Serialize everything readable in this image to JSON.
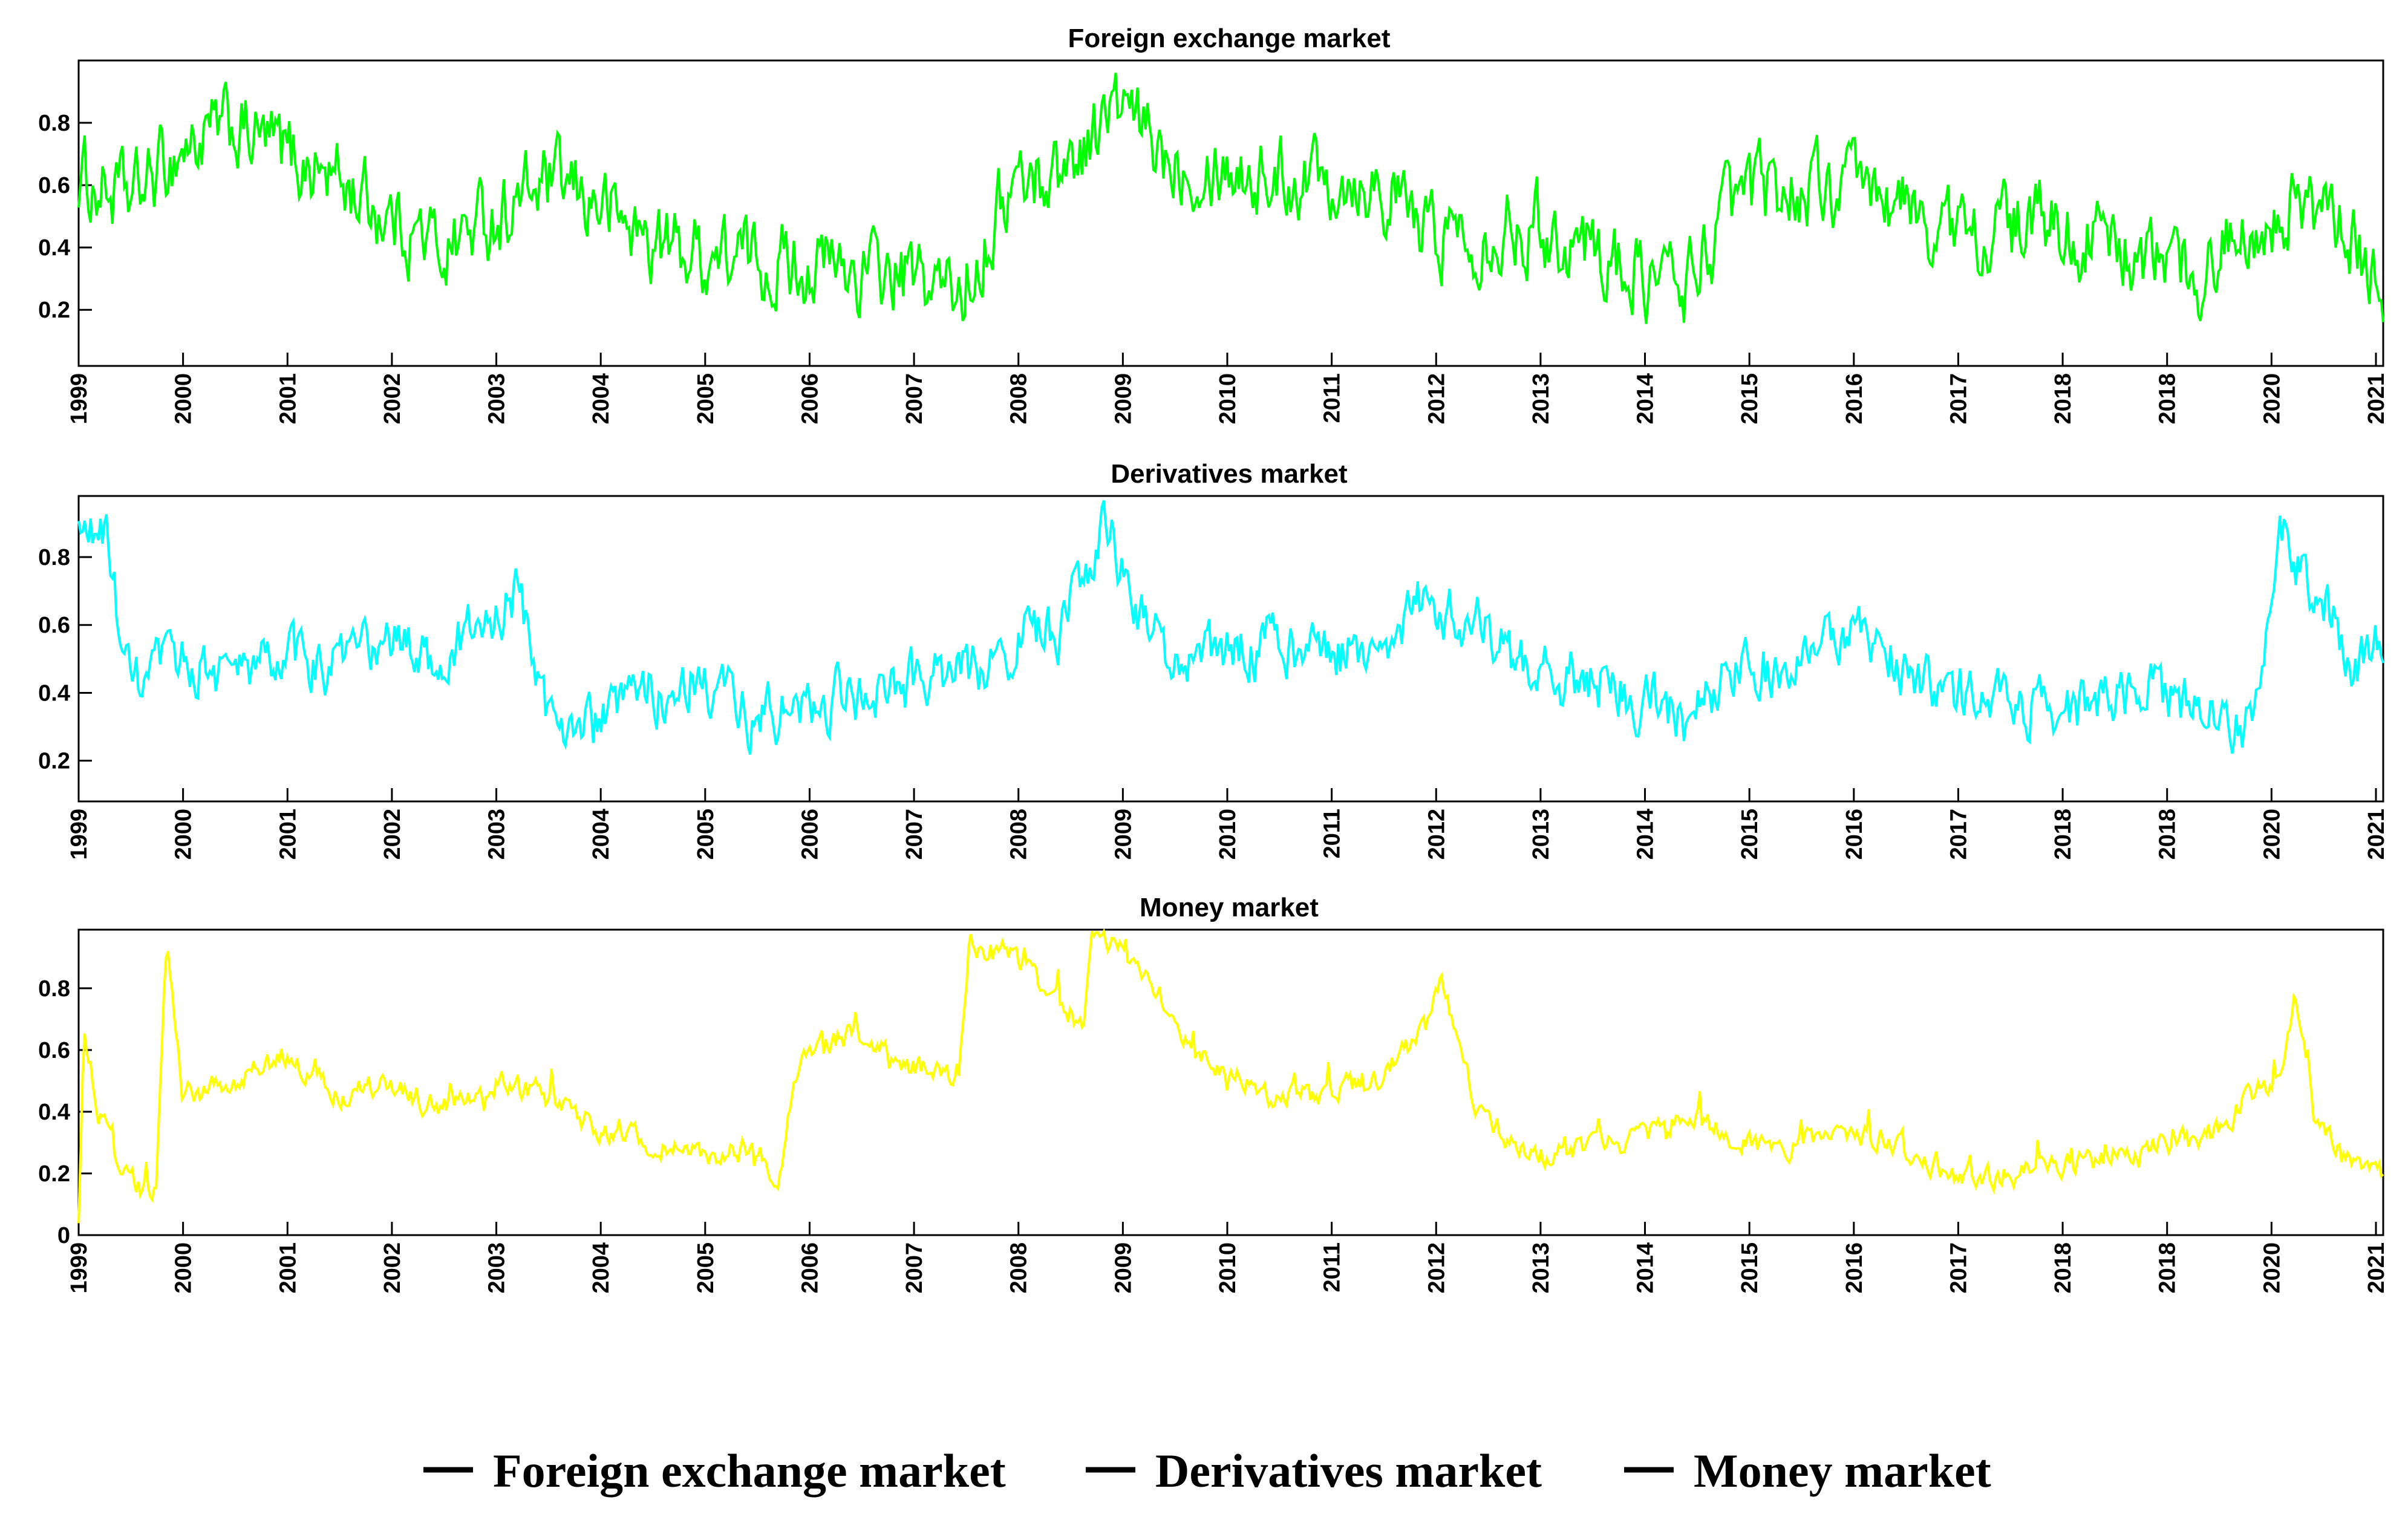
{
  "figure": {
    "legend": {
      "placement": "bottom-center",
      "entries": [
        "Foreign exchange market",
        "Derivatives market",
        "Money market"
      ]
    }
  },
  "chart_data": [
    {
      "type": "line",
      "title": "Foreign exchange market",
      "xlabel": "",
      "ylabel": "",
      "color": "#00ff00",
      "xlim": [
        1999.0,
        2021.25
      ],
      "ylim": [
        0.02,
        1.0
      ],
      "yticks": [
        0.2,
        0.4,
        0.6,
        0.8
      ],
      "ytick_labels": [
        "0.2",
        "0.4",
        "0.6",
        "0.8"
      ],
      "xtick_labels": [
        "1999",
        "2000",
        "2001",
        "2002",
        "2003",
        "2004",
        "2005",
        "2006",
        "2007",
        "2008",
        "2009",
        "2010",
        "2011",
        "2012",
        "2013",
        "2014",
        "2015",
        "2016",
        "2017",
        "2018",
        "2018",
        "2020",
        "2021"
      ],
      "grid": false,
      "series": [
        {
          "x": [
            1999.0,
            1999.5,
            2000.0,
            2000.5,
            2001.0,
            2001.5,
            2002.0,
            2002.5,
            2003.0,
            2003.5,
            2004.0,
            2004.5,
            2005.0,
            2005.5,
            2006.0,
            2006.5,
            2007.0,
            2007.5,
            2008.0,
            2008.5,
            2009.0,
            2009.5,
            2010.0,
            2010.5,
            2011.0,
            2011.5,
            2012.0,
            2012.5,
            2013.0,
            2013.5,
            2014.0,
            2014.5,
            2015.0,
            2015.5,
            2016.0,
            2016.5,
            2017.0,
            2017.5,
            2018.0,
            2018.5,
            2019.0,
            2019.5,
            2020.0,
            2020.5,
            2021.0,
            2021.25
          ],
          "y": [
            0.62,
            0.55,
            0.72,
            0.78,
            0.7,
            0.62,
            0.5,
            0.4,
            0.5,
            0.6,
            0.55,
            0.42,
            0.38,
            0.36,
            0.35,
            0.32,
            0.3,
            0.25,
            0.6,
            0.65,
            0.85,
            0.7,
            0.68,
            0.62,
            0.65,
            0.62,
            0.45,
            0.45,
            0.48,
            0.42,
            0.32,
            0.28,
            0.55,
            0.6,
            0.58,
            0.55,
            0.45,
            0.45,
            0.48,
            0.42,
            0.35,
            0.32,
            0.5,
            0.55,
            0.38,
            0.3
          ]
        }
      ]
    },
    {
      "type": "line",
      "title": "Derivatives market",
      "xlabel": "",
      "ylabel": "",
      "color": "#00ffff",
      "xlim": [
        1999.0,
        2021.25
      ],
      "ylim": [
        0.08,
        0.98
      ],
      "yticks": [
        0.2,
        0.4,
        0.6,
        0.8
      ],
      "ytick_labels": [
        "0.2",
        "0.4",
        "0.6",
        "0.8"
      ],
      "xtick_labels": [
        "1999",
        "2000",
        "2001",
        "2002",
        "2003",
        "2004",
        "2005",
        "2006",
        "2007",
        "2008",
        "2009",
        "2010",
        "2011",
        "2012",
        "2013",
        "2014",
        "2015",
        "2016",
        "2017",
        "2018",
        "2018",
        "2020",
        "2021"
      ],
      "grid": false,
      "series": [
        {
          "x": [
            1999.0,
            1999.25,
            1999.5,
            2000.0,
            2000.5,
            2001.0,
            2001.5,
            2002.0,
            2002.5,
            2003.0,
            2003.25,
            2003.5,
            2004.0,
            2004.5,
            2005.0,
            2005.5,
            2006.0,
            2006.5,
            2007.0,
            2007.5,
            2008.0,
            2008.5,
            2008.9,
            2009.25,
            2009.5,
            2010.0,
            2010.5,
            2011.0,
            2011.5,
            2012.0,
            2012.5,
            2013.0,
            2013.5,
            2014.0,
            2014.5,
            2015.0,
            2015.5,
            2016.0,
            2016.5,
            2017.0,
            2017.5,
            2018.0,
            2018.5,
            2019.0,
            2019.5,
            2020.0,
            2020.25,
            2020.5,
            2021.0,
            2021.25
          ],
          "y": [
            0.85,
            0.88,
            0.4,
            0.5,
            0.45,
            0.5,
            0.48,
            0.55,
            0.5,
            0.62,
            0.7,
            0.35,
            0.3,
            0.4,
            0.45,
            0.32,
            0.35,
            0.4,
            0.42,
            0.45,
            0.55,
            0.58,
            0.9,
            0.65,
            0.5,
            0.5,
            0.55,
            0.5,
            0.55,
            0.68,
            0.6,
            0.45,
            0.45,
            0.4,
            0.32,
            0.45,
            0.5,
            0.6,
            0.5,
            0.4,
            0.4,
            0.35,
            0.35,
            0.4,
            0.35,
            0.3,
            0.9,
            0.75,
            0.48,
            0.55
          ]
        }
      ]
    },
    {
      "type": "line",
      "title": "Money market",
      "xlabel": "",
      "ylabel": "",
      "color": "#ffff00",
      "xlim": [
        1999.0,
        2021.25
      ],
      "ylim": [
        0.0,
        0.99
      ],
      "yticks": [
        0,
        0.2,
        0.4,
        0.6,
        0.8
      ],
      "ytick_labels": [
        "0",
        "0.2",
        "0.4",
        "0.6",
        "0.8"
      ],
      "xtick_labels": [
        "1999",
        "2000",
        "2001",
        "2002",
        "2003",
        "2004",
        "2005",
        "2006",
        "2007",
        "2008",
        "2009",
        "2010",
        "2011",
        "2012",
        "2013",
        "2014",
        "2015",
        "2016",
        "2017",
        "2018",
        "2018",
        "2020",
        "2021"
      ],
      "grid": false,
      "series": [
        {
          "x": [
            1999.0,
            1999.05,
            1999.2,
            1999.4,
            1999.6,
            1999.75,
            1999.85,
            2000.0,
            2000.5,
            2001.0,
            2001.5,
            2002.0,
            2002.5,
            2003.0,
            2003.5,
            2004.0,
            2004.5,
            2005.0,
            2005.5,
            2005.75,
            2006.0,
            2006.5,
            2007.0,
            2007.5,
            2007.6,
            2008.0,
            2008.5,
            2008.7,
            2008.8,
            2009.0,
            2009.25,
            2009.5,
            2010.0,
            2010.5,
            2011.0,
            2011.5,
            2012.0,
            2012.15,
            2012.5,
            2013.0,
            2013.5,
            2014.0,
            2014.5,
            2015.0,
            2015.5,
            2016.0,
            2016.5,
            2017.0,
            2017.5,
            2018.0,
            2018.5,
            2019.0,
            2019.5,
            2020.0,
            2020.25,
            2020.4,
            2020.6,
            2021.0,
            2021.25
          ],
          "y": [
            0.02,
            0.65,
            0.4,
            0.2,
            0.15,
            0.15,
            0.95,
            0.45,
            0.5,
            0.58,
            0.45,
            0.5,
            0.4,
            0.5,
            0.45,
            0.35,
            0.3,
            0.25,
            0.28,
            0.2,
            0.6,
            0.65,
            0.55,
            0.5,
            0.95,
            0.9,
            0.75,
            0.68,
            0.98,
            0.95,
            0.85,
            0.7,
            0.55,
            0.45,
            0.45,
            0.5,
            0.65,
            0.82,
            0.4,
            0.25,
            0.28,
            0.3,
            0.4,
            0.3,
            0.28,
            0.35,
            0.3,
            0.2,
            0.18,
            0.22,
            0.25,
            0.3,
            0.3,
            0.45,
            0.5,
            0.78,
            0.35,
            0.25,
            0.2
          ]
        }
      ]
    }
  ]
}
